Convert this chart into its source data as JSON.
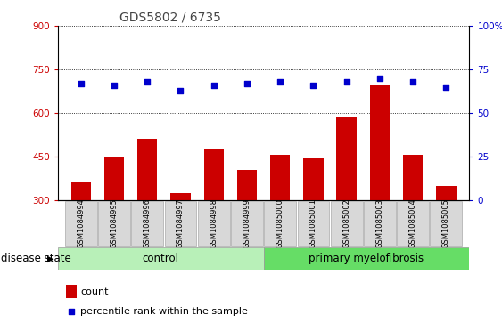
{
  "title": "GDS5802 / 6735",
  "samples": [
    "GSM1084994",
    "GSM1084995",
    "GSM1084996",
    "GSM1084997",
    "GSM1084998",
    "GSM1084999",
    "GSM1085000",
    "GSM1085001",
    "GSM1085002",
    "GSM1085003",
    "GSM1085004",
    "GSM1085005"
  ],
  "counts": [
    365,
    450,
    510,
    325,
    475,
    405,
    455,
    445,
    585,
    695,
    455,
    350
  ],
  "percentile_ranks": [
    67,
    66,
    68,
    63,
    66,
    67,
    68,
    66,
    68,
    70,
    68,
    65
  ],
  "bar_color": "#cc0000",
  "dot_color": "#0000cc",
  "ylim_left": [
    300,
    900
  ],
  "ylim_right": [
    0,
    100
  ],
  "yticks_left": [
    300,
    450,
    600,
    750,
    900
  ],
  "yticks_right": [
    0,
    25,
    50,
    75,
    100
  ],
  "control_count": 6,
  "control_label": "control",
  "disease_label": "primary myelofibrosis",
  "disease_state_label": "disease state",
  "legend_count_label": "count",
  "legend_pct_label": "percentile rank within the sample",
  "control_bg": "#b8f0b8",
  "disease_bg": "#66dd66",
  "xticklabel_bg": "#d8d8d8",
  "title_color": "#444444"
}
